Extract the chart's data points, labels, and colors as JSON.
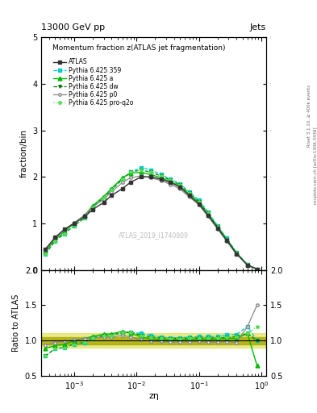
{
  "title_top": "13000 GeV pp",
  "title_right": "Jets",
  "plot_title": "Momentum fraction z(ATLAS jet fragmentation)",
  "xlabel": "zη",
  "ylabel_main": "fraction/bin",
  "ylabel_ratio": "Ratio to ATLAS",
  "right_label": "Rivet 3.1.10, ≥ 400k events",
  "right_label2": "mcplots.cern.ch [arXiv:1306.3436]",
  "watermark": "ATLAS_2019_I1740909",
  "xlim": [
    0.0003,
    1.2
  ],
  "ylim_main": [
    0,
    5
  ],
  "ylim_ratio": [
    0.5,
    2.0
  ],
  "x_data": [
    0.00035,
    0.0005,
    0.0007,
    0.001,
    0.0015,
    0.002,
    0.003,
    0.004,
    0.006,
    0.008,
    0.012,
    0.017,
    0.025,
    0.035,
    0.05,
    0.07,
    0.1,
    0.14,
    0.2,
    0.28,
    0.4,
    0.6,
    0.85
  ],
  "atlas_y": [
    0.45,
    0.7,
    0.87,
    1.0,
    1.15,
    1.3,
    1.45,
    1.6,
    1.75,
    1.88,
    2.0,
    2.0,
    1.95,
    1.88,
    1.78,
    1.6,
    1.42,
    1.18,
    0.9,
    0.63,
    0.35,
    0.1,
    0.02
  ],
  "py359_y": [
    0.35,
    0.62,
    0.78,
    0.95,
    1.12,
    1.35,
    1.55,
    1.72,
    1.95,
    2.1,
    2.2,
    2.15,
    2.05,
    1.95,
    1.85,
    1.68,
    1.5,
    1.25,
    0.95,
    0.68,
    0.38,
    0.12,
    0.02
  ],
  "pya_y": [
    0.4,
    0.65,
    0.82,
    1.0,
    1.18,
    1.38,
    1.58,
    1.75,
    1.98,
    2.08,
    2.1,
    2.05,
    1.98,
    1.9,
    1.8,
    1.63,
    1.45,
    1.2,
    0.92,
    0.65,
    0.36,
    0.11,
    0.02
  ],
  "pydw_y": [
    0.35,
    0.62,
    0.78,
    0.95,
    1.12,
    1.35,
    1.55,
    1.72,
    1.95,
    2.1,
    2.15,
    2.1,
    2.02,
    1.93,
    1.83,
    1.65,
    1.47,
    1.22,
    0.93,
    0.66,
    0.37,
    0.11,
    0.02
  ],
  "pyp0_y": [
    0.42,
    0.68,
    0.86,
    1.01,
    1.18,
    1.35,
    1.52,
    1.68,
    1.88,
    1.98,
    2.02,
    1.98,
    1.92,
    1.84,
    1.74,
    1.57,
    1.4,
    1.15,
    0.88,
    0.62,
    0.34,
    0.12,
    0.02
  ],
  "pyproq2o_y": [
    0.35,
    0.62,
    0.78,
    0.95,
    1.12,
    1.35,
    1.55,
    1.72,
    1.95,
    2.1,
    2.15,
    2.1,
    2.02,
    1.93,
    1.83,
    1.65,
    1.47,
    1.22,
    0.93,
    0.66,
    0.37,
    0.11,
    0.02
  ],
  "atlas_color": "#333333",
  "py359_color": "#00cccc",
  "pya_color": "#00bb00",
  "pydw_color": "#007700",
  "pyp0_color": "#888888",
  "pyproq2o_color": "#55dd55",
  "ratio_py359": [
    0.78,
    0.89,
    0.9,
    0.95,
    0.97,
    1.04,
    1.07,
    1.075,
    1.11,
    1.117,
    1.1,
    1.075,
    1.051,
    1.037,
    1.039,
    1.05,
    1.056,
    1.059,
    1.056,
    1.079,
    1.086,
    1.2,
    1.0
  ],
  "ratio_pya": [
    0.89,
    0.93,
    0.94,
    1.0,
    1.026,
    1.062,
    1.09,
    1.094,
    1.131,
    1.106,
    1.05,
    1.025,
    1.015,
    1.011,
    1.011,
    1.019,
    1.021,
    1.017,
    1.022,
    1.032,
    1.029,
    1.1,
    0.65
  ],
  "ratio_pydw": [
    0.78,
    0.886,
    0.897,
    0.95,
    0.974,
    1.038,
    1.069,
    1.075,
    1.114,
    1.117,
    1.075,
    1.05,
    1.036,
    1.026,
    1.028,
    1.031,
    1.035,
    1.034,
    1.033,
    1.048,
    1.057,
    1.1,
    1.0
  ],
  "ratio_pyp0": [
    0.933,
    0.971,
    0.989,
    1.01,
    1.026,
    1.038,
    1.048,
    1.05,
    1.074,
    1.053,
    1.01,
    0.99,
    0.985,
    0.979,
    0.978,
    0.981,
    0.986,
    0.975,
    0.978,
    0.984,
    0.971,
    1.2,
    1.5
  ],
  "ratio_pyproq2o": [
    0.78,
    0.886,
    0.897,
    0.95,
    0.974,
    1.038,
    1.069,
    1.075,
    1.114,
    1.117,
    1.075,
    1.05,
    1.036,
    1.026,
    1.028,
    1.031,
    1.035,
    1.034,
    1.033,
    1.048,
    1.057,
    1.1,
    1.2
  ],
  "band_color_outer": "#dddd44",
  "band_color_inner": "#aaaa00"
}
